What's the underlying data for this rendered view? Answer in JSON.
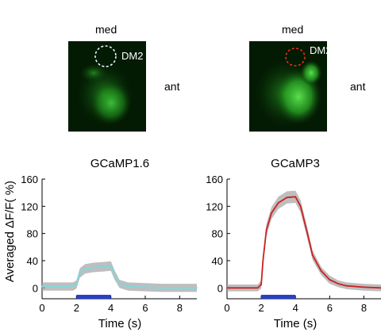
{
  "figure": {
    "images": [
      {
        "label_top": "med",
        "label_side": "ant",
        "roi_label": "DM2",
        "roi_color": "#e8f4ff"
      },
      {
        "label_top": "med",
        "label_side": "ant",
        "roi_label": "DM2",
        "roi_color": "#e03020"
      }
    ]
  },
  "chart_data": [
    {
      "type": "line",
      "title": "GCaMP1.6",
      "xlabel": "Time (s)",
      "ylabel": "Averaged ΔF/F( %)",
      "xlim": [
        0,
        9
      ],
      "ylim": [
        -16,
        160
      ],
      "xticks": [
        "0",
        "2",
        "4",
        "6",
        "8"
      ],
      "yticks": [
        "0",
        "40",
        "80",
        "120",
        "160"
      ],
      "stimulus": {
        "start": 2,
        "end": 4,
        "color": "#2840c8"
      },
      "series": [
        {
          "line_color": "#7fd8dc",
          "band_color": "#a8a8a8",
          "x": [
            0,
            1,
            1.8,
            2.0,
            2.2,
            2.5,
            3.0,
            3.5,
            4.0,
            4.2,
            4.5,
            5,
            6,
            7,
            8,
            9
          ],
          "y": [
            2,
            2,
            2,
            5,
            22,
            28,
            30,
            31,
            32,
            20,
            6,
            2,
            1,
            0,
            0,
            0
          ],
          "err": [
            6,
            6,
            6,
            6,
            7,
            7,
            7,
            7,
            7,
            7,
            6,
            6,
            6,
            6,
            6,
            6
          ]
        }
      ]
    },
    {
      "type": "line",
      "title": "GCaMP3",
      "xlabel": "Time (s)",
      "ylabel": "",
      "xlim": [
        0,
        9
      ],
      "ylim": [
        -16,
        160
      ],
      "xticks": [
        "0",
        "2",
        "4",
        "6",
        "8"
      ],
      "yticks": [
        "0",
        "40",
        "80",
        "120",
        "160"
      ],
      "stimulus": {
        "start": 2,
        "end": 4,
        "color": "#2840c8"
      },
      "series": [
        {
          "line_color": "#cc2020",
          "band_color": "#a8a8a8",
          "x": [
            0,
            1,
            1.8,
            2.0,
            2.1,
            2.3,
            2.6,
            3.0,
            3.5,
            4.0,
            4.3,
            4.7,
            5.0,
            5.5,
            6.0,
            6.5,
            7,
            8,
            9
          ],
          "y": [
            0,
            0,
            0,
            5,
            40,
            85,
            110,
            125,
            133,
            134,
            120,
            80,
            48,
            25,
            12,
            6,
            3,
            1,
            0
          ],
          "err": [
            5,
            5,
            5,
            6,
            8,
            9,
            9,
            9,
            9,
            9,
            9,
            8,
            7,
            6,
            6,
            5,
            5,
            5,
            5
          ]
        }
      ]
    }
  ]
}
